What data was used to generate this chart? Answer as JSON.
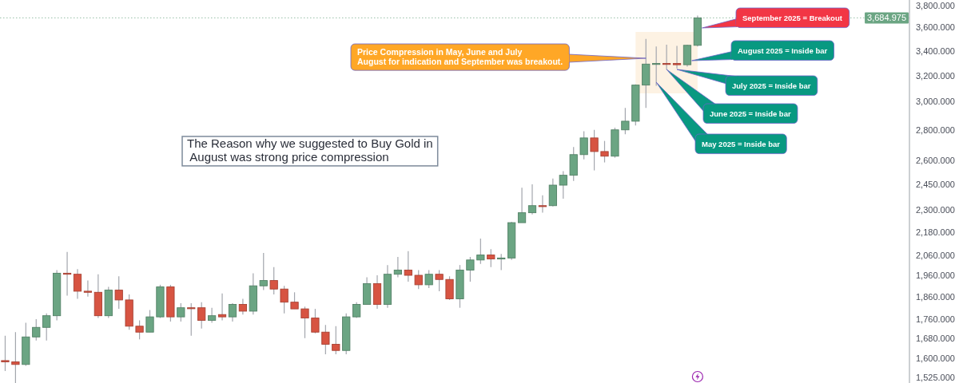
{
  "chart_data": {
    "type": "candlestick",
    "log": true,
    "tick_labels": "y",
    "categories": [
      null,
      null,
      null,
      null,
      null,
      null,
      null,
      null,
      null,
      null,
      null,
      null,
      null,
      null,
      null,
      null,
      null,
      null,
      null,
      null,
      null,
      null,
      null,
      null,
      null,
      null,
      null,
      null,
      null,
      null,
      null,
      null,
      null,
      null,
      null,
      null,
      null,
      null,
      null,
      null,
      null,
      null,
      null,
      null,
      null,
      null,
      null,
      null,
      null,
      null,
      null,
      null,
      null,
      null,
      null,
      null,
      null,
      null,
      null,
      null,
      null,
      null,
      null,
      null,
      null,
      null,
      null,
      null,
      null,
      null,
      null,
      null,
      null,
      null,
      null,
      null,
      null,
      null,
      null,
      null,
      null,
      null,
      null,
      null,
      null,
      null,
      null,
      null
    ],
    "ohlc": [
      [
        1590,
        1690,
        1550,
        1585
      ],
      [
        1585,
        1705,
        1505,
        1575
      ],
      [
        1575,
        1745,
        1570,
        1685
      ],
      [
        1685,
        1760,
        1670,
        1725
      ],
      [
        1725,
        1785,
        1670,
        1775
      ],
      [
        1775,
        1985,
        1755,
        1970
      ],
      [
        1970,
        2075,
        1865,
        1965
      ],
      [
        1965,
        1990,
        1850,
        1885
      ],
      [
        1885,
        1935,
        1860,
        1880
      ],
      [
        1880,
        1965,
        1765,
        1775
      ],
      [
        1775,
        1905,
        1765,
        1890
      ],
      [
        1890,
        1955,
        1805,
        1845
      ],
      [
        1845,
        1870,
        1715,
        1730
      ],
      [
        1730,
        1755,
        1675,
        1705
      ],
      [
        1705,
        1800,
        1705,
        1770
      ],
      [
        1770,
        1915,
        1765,
        1905
      ],
      [
        1905,
        1915,
        1750,
        1770
      ],
      [
        1770,
        1830,
        1750,
        1810
      ],
      [
        1810,
        1830,
        1690,
        1810
      ],
      [
        1810,
        1835,
        1720,
        1755
      ],
      [
        1755,
        1810,
        1745,
        1775
      ],
      [
        1780,
        1875,
        1755,
        1770
      ],
      [
        1770,
        1830,
        1750,
        1825
      ],
      [
        1825,
        1850,
        1780,
        1795
      ],
      [
        1795,
        1970,
        1780,
        1910
      ],
      [
        1910,
        2070,
        1890,
        1935
      ],
      [
        1935,
        2000,
        1870,
        1895
      ],
      [
        1895,
        1910,
        1785,
        1835
      ],
      [
        1835,
        1880,
        1805,
        1805
      ],
      [
        1805,
        1815,
        1680,
        1765
      ],
      [
        1765,
        1805,
        1700,
        1705
      ],
      [
        1705,
        1735,
        1615,
        1655
      ],
      [
        1655,
        1730,
        1615,
        1630
      ],
      [
        1630,
        1785,
        1615,
        1770
      ],
      [
        1770,
        1835,
        1765,
        1825
      ],
      [
        1825,
        1950,
        1825,
        1920
      ],
      [
        1920,
        1960,
        1805,
        1825
      ],
      [
        1825,
        2010,
        1810,
        1965
      ],
      [
        1965,
        2050,
        1950,
        1985
      ],
      [
        1985,
        2080,
        1930,
        1960
      ],
      [
        1960,
        1985,
        1895,
        1915
      ],
      [
        1915,
        1985,
        1900,
        1965
      ],
      [
        1965,
        1985,
        1885,
        1940
      ],
      [
        1940,
        1955,
        1845,
        1850
      ],
      [
        1850,
        2010,
        1810,
        1985
      ],
      [
        1985,
        2050,
        1930,
        2035
      ],
      [
        2035,
        2145,
        2015,
        2060
      ],
      [
        2060,
        2090,
        2000,
        2040
      ],
      [
        2040,
        2065,
        1985,
        2045
      ],
      [
        2045,
        2235,
        2035,
        2230
      ],
      [
        2230,
        2430,
        2230,
        2285
      ],
      [
        2285,
        2450,
        2275,
        2325
      ],
      [
        2325,
        2385,
        2285,
        2325
      ],
      [
        2325,
        2485,
        2320,
        2445
      ],
      [
        2445,
        2530,
        2365,
        2505
      ],
      [
        2505,
        2685,
        2470,
        2635
      ],
      [
        2635,
        2790,
        2605,
        2745
      ],
      [
        2745,
        2800,
        2535,
        2655
      ],
      [
        2655,
        2725,
        2585,
        2625
      ],
      [
        2625,
        2815,
        2615,
        2800
      ],
      [
        2800,
        2955,
        2770,
        2860
      ],
      [
        2860,
        3130,
        2830,
        3125
      ],
      [
        3125,
        3500,
        2955,
        3290
      ],
      [
        3290,
        3435,
        3120,
        3295
      ],
      [
        3295,
        3450,
        3245,
        3295
      ],
      [
        3295,
        3440,
        3255,
        3285
      ],
      [
        3285,
        3450,
        3270,
        3445
      ],
      [
        3445,
        3705,
        3435,
        3685
      ],
      null,
      null,
      null,
      null,
      null,
      null,
      null,
      null,
      null,
      null,
      null,
      null,
      null,
      null,
      null,
      null,
      null,
      null,
      null,
      null
    ],
    "colors": [
      "#d75442",
      "#d75442",
      "#6ba583",
      "#6ba583",
      "#6ba583",
      "#6ba583",
      "#d75442",
      "#d75442",
      "#d75442",
      "#d75442",
      "#6ba583",
      "#d75442",
      "#d75442",
      "#d75442",
      "#6ba583",
      "#6ba583",
      "#d75442",
      "#6ba583",
      "#d75442",
      "#d75442",
      "#6ba583",
      "#d75442",
      "#6ba583",
      "#d75442",
      "#6ba583",
      "#6ba583",
      "#d75442",
      "#d75442",
      "#d75442",
      "#d75442",
      "#d75442",
      "#d75442",
      "#d75442",
      "#6ba583",
      "#6ba583",
      "#6ba583",
      "#d75442",
      "#6ba583",
      "#6ba583",
      "#d75442",
      "#d75442",
      "#6ba583",
      "#d75442",
      "#d75442",
      "#6ba583",
      "#6ba583",
      "#6ba583",
      "#d75442",
      "#6ba583",
      "#6ba583",
      "#6ba583",
      "#6ba583",
      "#d75442",
      "#6ba583",
      "#6ba583",
      "#6ba583",
      "#6ba583",
      "#d75442",
      "#d75442",
      "#6ba583",
      "#6ba583",
      "#6ba583",
      "#6ba583",
      "#6ba583",
      "#d75442",
      "#d75442",
      "#6ba583",
      "#6ba583",
      null,
      null,
      null,
      null,
      null,
      null,
      null,
      null,
      null,
      null,
      null,
      null,
      null,
      null,
      null,
      null,
      null,
      null,
      null,
      null
    ],
    "ylim": [
      1505,
      3850
    ],
    "yticks": [
      {
        "value": 1525,
        "label": "1,525.000"
      },
      {
        "value": 1600,
        "label": "1,600.000"
      },
      {
        "value": 1680,
        "label": "1,680.000"
      },
      {
        "value": 1760,
        "label": "1,760.000"
      },
      {
        "value": 1860,
        "label": "1,860.000"
      },
      {
        "value": 1960,
        "label": "1,960.000"
      },
      {
        "value": 2060,
        "label": "2,060.000"
      },
      {
        "value": 2180,
        "label": "2,180.000"
      },
      {
        "value": 2300,
        "label": "2,300.000"
      },
      {
        "value": 2450,
        "label": "2,450.000"
      },
      {
        "value": 2600,
        "label": "2,600.000"
      },
      {
        "value": 2800,
        "label": "2,800.000"
      },
      {
        "value": 3000,
        "label": "3,000.000"
      },
      {
        "value": 3200,
        "label": "3,200.000"
      },
      {
        "value": 3400,
        "label": "3,400.000"
      },
      {
        "value": 3600,
        "label": "3,600.000"
      },
      {
        "value": 3800,
        "label": "3,800.000"
      }
    ],
    "ref_lines": [
      {
        "axis": "y",
        "value": 3684.975,
        "label": "3,684.975",
        "color": "#6ba583",
        "line_style": "dotted"
      }
    ],
    "annotations": [
      "The Reason why we suggested to Buy Gold in\n August was strong price compression",
      "Price Compression in May, June and July\nAugust for indication and September was breakout.",
      "September 2025 = Breakout",
      "August 2025 = Inside bar",
      "July 2025 = Inside bar",
      "June 2025 = Inside bar",
      "May 2025 = Inside bar"
    ]
  }
}
